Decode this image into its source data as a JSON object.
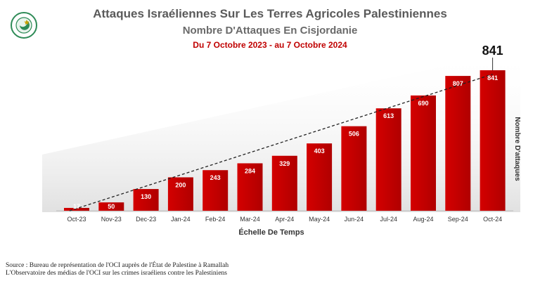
{
  "header": {
    "title": "Attaques Israéliennes Sur Les Terres Agricoles Palestiniennes",
    "subtitle": "Nombre D'Attaques En Cisjordanie",
    "period": "Du 7 Octobre 2023 - au 7 Octobre 2024"
  },
  "source": {
    "line1": "Source : Bureau de représentation de l'OCI auprès de l'État de Palestine à Ramallah",
    "line2": "L'Observatoire des médias de l'OCI sur les crimes israéliens contre les Palestiniens"
  },
  "colors": {
    "bar": "#c00000",
    "bar_dark": "#8a0000",
    "trend": "#222222",
    "logo": "#2e8b57"
  },
  "chart_data": {
    "type": "bar",
    "title": "Nombre D'Attaques En Cisjordanie",
    "xlabel": "Échelle De Temps",
    "ylabel": "Nombre D'attaques",
    "categories": [
      "Oct-23",
      "Nov-23",
      "Dec-23",
      "Jan-24",
      "Feb-24",
      "Mar-24",
      "Apr-24",
      "May-24",
      "Jun-24",
      "Jul-24",
      "Aug-24",
      "Sep-24",
      "Oct-24"
    ],
    "values": [
      17,
      50,
      130,
      200,
      243,
      284,
      329,
      403,
      506,
      613,
      690,
      807,
      841
    ],
    "highlight_label": "841",
    "trendline": "linear, dashed",
    "ylim": [
      0,
      841
    ],
    "grid": false
  }
}
